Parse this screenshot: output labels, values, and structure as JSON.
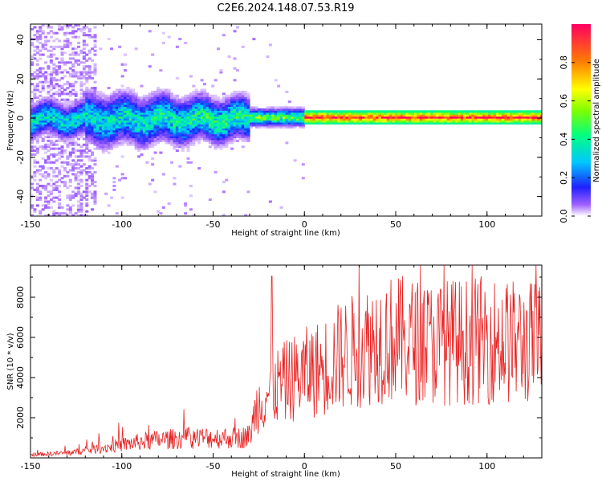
{
  "title": "C2E6.2024.148.07.53.R19",
  "chart_data": [
    {
      "type": "heatmap",
      "xlabel": "Height of straight line (km)",
      "ylabel": "Frequency (Hz)",
      "xlim": [
        -150,
        130
      ],
      "ylim": [
        -50,
        48
      ],
      "xticks": [
        -150,
        -100,
        -50,
        0,
        50,
        100
      ],
      "yticks": [
        -40,
        -20,
        0,
        20,
        40
      ],
      "colorbar": {
        "label": "Normalized spectral amplitude",
        "range": [
          0,
          1
        ],
        "ticks": [
          "0.0",
          "0.2",
          "0.4",
          "0.6",
          "0.8"
        ]
      },
      "grid": false
    },
    {
      "type": "line",
      "xlabel": "Height of straight line (km)",
      "ylabel": "SNR (10 * v/v)",
      "xlim": [
        -150,
        130
      ],
      "ylim": [
        0,
        9600
      ],
      "xticks": [
        -150,
        -100,
        -50,
        0,
        50,
        100
      ],
      "yticks": [
        2000,
        4000,
        6000,
        8000
      ],
      "color": "#e82222",
      "x": [
        -150,
        -140,
        -130,
        -120,
        -110,
        -100,
        -90,
        -80,
        -70,
        -60,
        -50,
        -40,
        -35,
        -30,
        -26,
        -18,
        -10,
        0,
        10,
        20,
        30,
        40,
        50,
        60,
        70,
        80,
        90,
        100,
        110,
        120,
        130
      ],
      "y": [
        150,
        200,
        250,
        350,
        500,
        650,
        800,
        900,
        950,
        1000,
        1000,
        1000,
        1000,
        1100,
        2600,
        3400,
        3800,
        4200,
        4500,
        5100,
        5400,
        5900,
        5900,
        5800,
        5700,
        5800,
        5800,
        5900,
        5800,
        5700,
        5800
      ],
      "grid": false
    }
  ]
}
